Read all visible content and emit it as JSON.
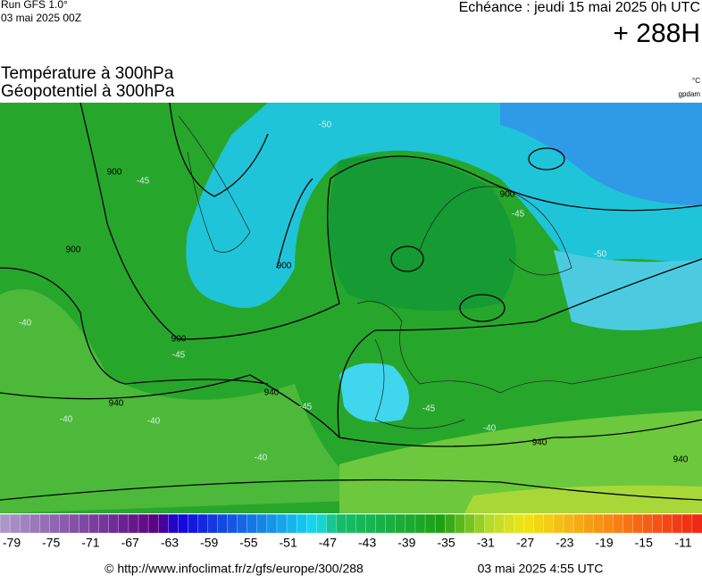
{
  "header": {
    "run": "Run GFS 1.0°",
    "run_date": "03 mai 2025 00Z",
    "valid": "Echéance : jeudi 15 mai 2025 0h UTC",
    "lead": "+ 288H"
  },
  "titles": {
    "line1": "Température à 300hPa",
    "line2": "Géopotentiel à 300hPa",
    "unit1": "°C",
    "unit2": "gpdam"
  },
  "contour_labels": [
    "900",
    "900",
    "900",
    "900",
    "940",
    "940",
    "940",
    "940",
    "900",
    "-45",
    "-45",
    "-45",
    "-50",
    "-40",
    "-40",
    "-40",
    "-40",
    "-45",
    "-50",
    "-45",
    "-40"
  ],
  "scale": {
    "labels": [
      -79,
      -75,
      -71,
      -67,
      -63,
      -59,
      -55,
      -51,
      -47,
      -43,
      -39,
      -35,
      -31,
      -27,
      -23,
      -19,
      -15,
      -11
    ]
  },
  "footer": {
    "source": "© http://www.infoclimat.fr/z/gfs/europe/300/288",
    "generated": "03 mai 2025  4:55 UTC"
  }
}
